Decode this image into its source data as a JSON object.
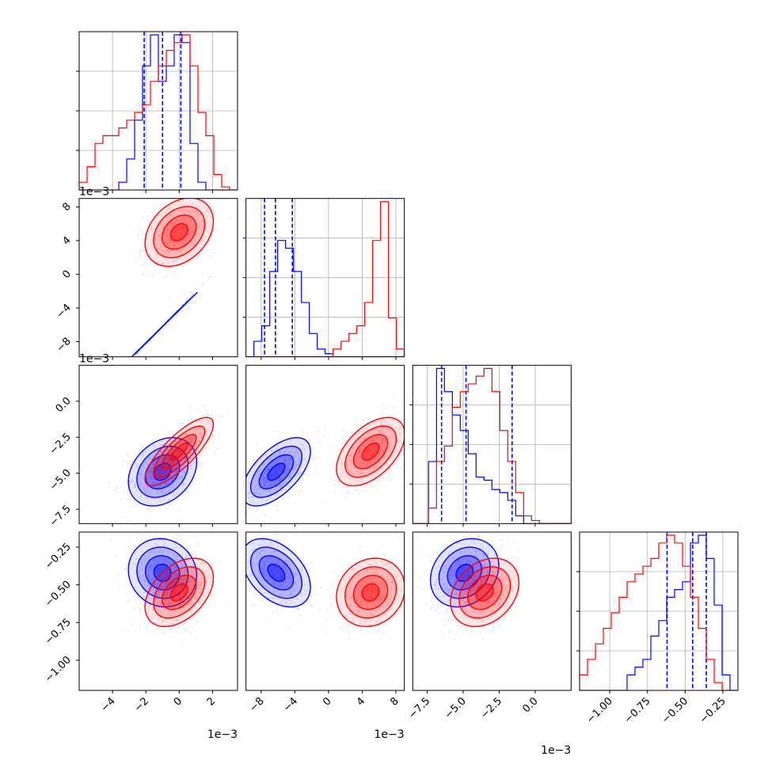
{
  "colors": {
    "series_a": "#0000ff",
    "series_b": "#ff0000",
    "grid": "#b0b0b0",
    "axis": "#000000"
  },
  "chart_data": {
    "type": "corner",
    "variables": [
      {
        "range": [
          -6,
          3.5
        ],
        "ticks": [
          -4,
          -2,
          0,
          2
        ],
        "tick_labels": [
          "−4",
          "−2",
          "0",
          "2"
        ],
        "scale_label": "1e−3"
      },
      {
        "range": [
          -9.8,
          9.0
        ],
        "ticks": [
          -8,
          -4,
          0,
          4,
          8
        ],
        "tick_labels": [
          "−8",
          "−4",
          "0",
          "4",
          "8"
        ],
        "scale_label": "1e−3"
      },
      {
        "range": [
          -8.5,
          2.5
        ],
        "ticks": [
          -7.5,
          -5.0,
          -2.5,
          0.0
        ],
        "tick_labels": [
          "−7.5",
          "−5.0",
          "−2.5",
          "0.0"
        ],
        "scale_label": "1e−3"
      },
      {
        "range": [
          -1.2,
          -0.15
        ],
        "ticks": [
          -1.0,
          -0.75,
          -0.5,
          -0.25
        ],
        "tick_labels": [
          "−1.00",
          "−0.75",
          "−0.50",
          "−0.25"
        ],
        "scale_label": ""
      }
    ],
    "series": [
      {
        "color": "#0000ff",
        "quantiles": [
          [
            -2.1,
            -1.0,
            0.1
          ],
          [
            -7.6,
            -6.3,
            -4.3
          ],
          [
            -6.5,
            -4.8,
            -1.6
          ],
          [
            -0.62,
            -0.45,
            -0.36
          ]
        ],
        "hist": [
          [
            0,
            0,
            0,
            0,
            0,
            0.05,
            0.2,
            0.45,
            0.8,
            1.0,
            0.7,
            0.8,
            1.0,
            0.95,
            0.3,
            0.05,
            0,
            0,
            0,
            0
          ],
          [
            0,
            0.1,
            0.2,
            0.55,
            0.75,
            0.7,
            0.55,
            0.35,
            0.15,
            0.05,
            0.02,
            0,
            0,
            0,
            0,
            0,
            0,
            0,
            0,
            0
          ],
          [
            0,
            0,
            0.4,
            1.0,
            0.85,
            0.7,
            0.6,
            0.45,
            0.3,
            0.28,
            0.22,
            0.2,
            0.15,
            0.05,
            0,
            0,
            0,
            0,
            0,
            0
          ],
          [
            0,
            0,
            0,
            0,
            0,
            0,
            0.1,
            0.15,
            0.2,
            0.35,
            0.45,
            0.6,
            0.65,
            0.7,
            0.95,
            1.0,
            0.85,
            0.55,
            0.1,
            0
          ]
        ],
        "cov": [
          [
            1.5,
            1.5,
            0.5,
            -0.01
          ],
          [
            1.5,
            1.4,
            1.0,
            -0.05
          ],
          [
            0.5,
            1.0,
            2.0,
            0.03
          ],
          [
            -0.01,
            -0.05,
            0.03,
            0.01
          ]
        ],
        "means": [
          -1.0,
          -6.2,
          -4.9,
          -0.42
        ]
      },
      {
        "color": "#ff0000",
        "quantiles": null,
        "hist": [
          [
            0.05,
            0.15,
            0.3,
            0.35,
            0.35,
            0.4,
            0.45,
            0.5,
            0.55,
            0.7,
            0.8,
            0.9,
            0.95,
            1.0,
            0.8,
            0.5,
            0.35,
            0.1,
            0.02,
            0
          ],
          [
            0,
            0,
            0,
            0,
            0,
            0,
            0,
            0,
            0,
            0,
            0,
            0.05,
            0.1,
            0.15,
            0.2,
            0.35,
            0.75,
            1.0,
            0.25,
            0.05
          ],
          [
            0,
            0,
            0.1,
            0.4,
            0.5,
            0.75,
            0.85,
            0.9,
            0.95,
            1.0,
            0.85,
            0.6,
            0.4,
            0.2,
            0.05,
            0.02,
            0,
            0,
            0,
            0
          ],
          [
            0.1,
            0.2,
            0.3,
            0.4,
            0.5,
            0.6,
            0.7,
            0.75,
            0.8,
            0.85,
            0.95,
            1.0,
            0.95,
            0.8,
            0.6,
            0.4,
            0.2,
            0.05,
            0,
            0
          ]
        ],
        "cov": [
          [
            2.5,
            0.5,
            2.0,
            0.15
          ],
          [
            0.5,
            1.0,
            0.8,
            0.03
          ],
          [
            2.0,
            0.8,
            2.5,
            0.1
          ],
          [
            0.15,
            0.03,
            0.1,
            0.05
          ]
        ],
        "means": [
          0.0,
          5.0,
          -3.5,
          -0.55
        ]
      }
    ]
  }
}
